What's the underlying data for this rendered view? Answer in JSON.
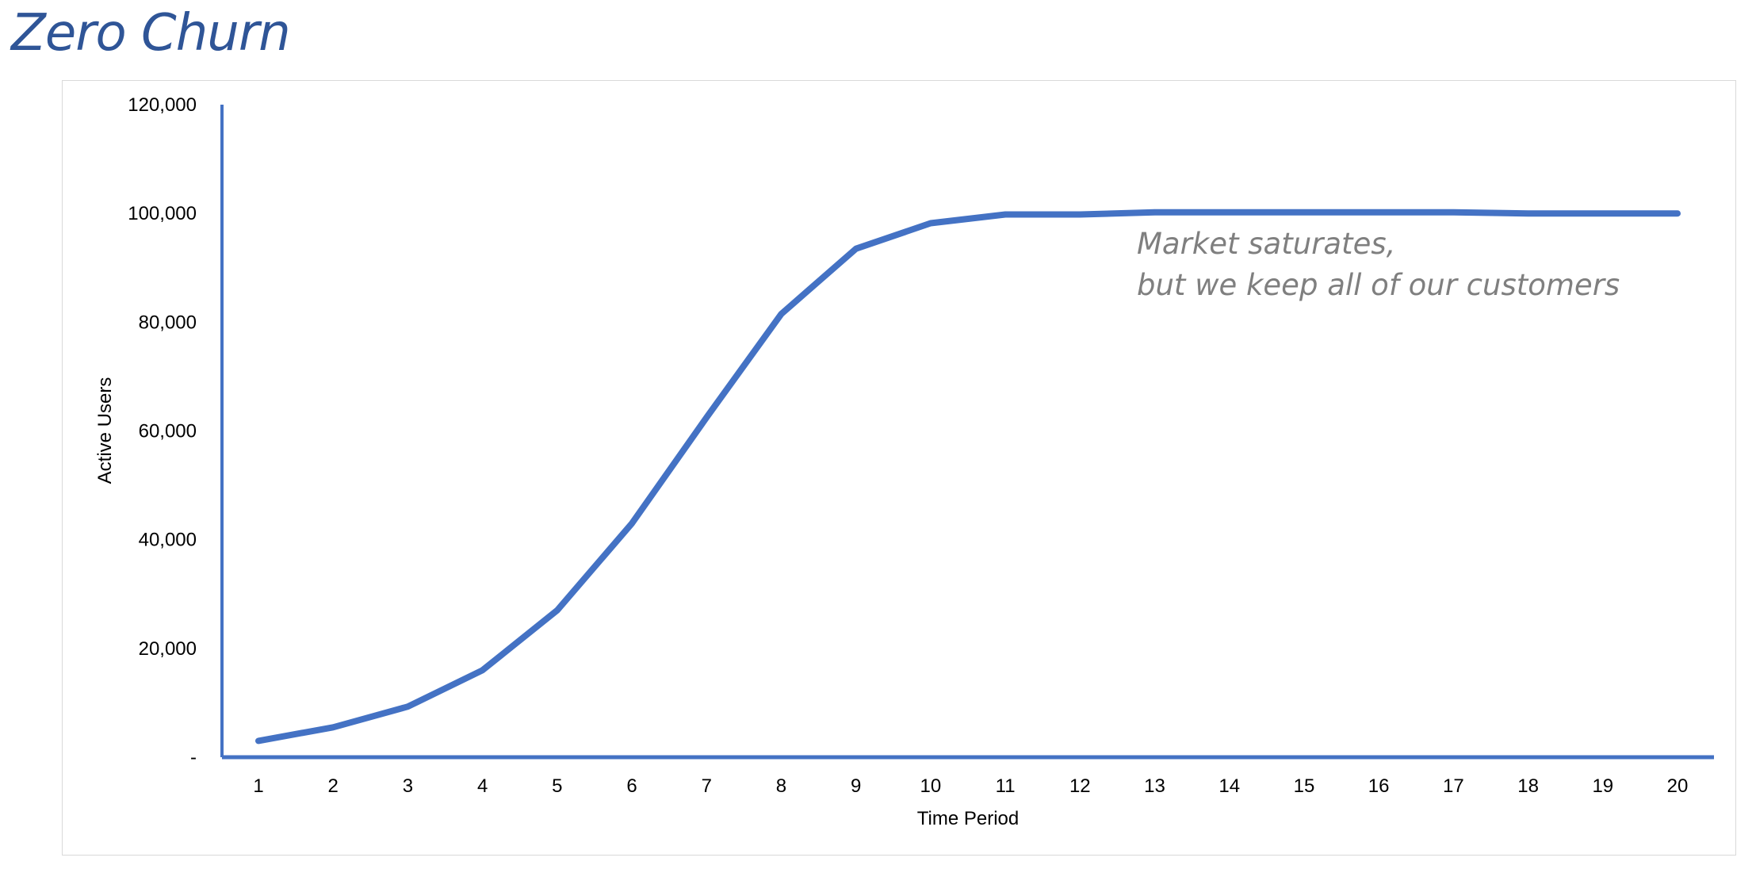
{
  "page": {
    "title": "Zero Churn"
  },
  "chart_data": {
    "type": "line",
    "title": "",
    "xlabel": "Time Period",
    "ylabel": "Active Users",
    "x": [
      1,
      2,
      3,
      4,
      5,
      6,
      7,
      8,
      9,
      10,
      11,
      12,
      13,
      14,
      15,
      16,
      17,
      18,
      19,
      20
    ],
    "series": [
      {
        "values": [
          3000,
          5500,
          9300,
          16000,
          27000,
          43000,
          62500,
          81500,
          93500,
          98200,
          99800,
          99800,
          100200,
          100200,
          100200,
          100200,
          100200,
          100000,
          100000,
          100000
        ],
        "color": "#4472c4"
      }
    ],
    "ylim": [
      0,
      120000
    ],
    "yticks": [
      0,
      20000,
      40000,
      60000,
      80000,
      100000,
      120000
    ],
    "ytick_labels": [
      "-",
      "20,000",
      "40,000",
      "60,000",
      "80,000",
      "100,000",
      "120,000"
    ],
    "xtick_labels": [
      "1",
      "2",
      "3",
      "4",
      "5",
      "6",
      "7",
      "8",
      "9",
      "10",
      "11",
      "12",
      "13",
      "14",
      "15",
      "16",
      "17",
      "18",
      "19",
      "20"
    ],
    "grid": false,
    "legend": "none",
    "axis_color": "#4472c4",
    "annotation": {
      "lines": [
        "Market saturates,",
        "but we keep all of our customers"
      ]
    }
  }
}
